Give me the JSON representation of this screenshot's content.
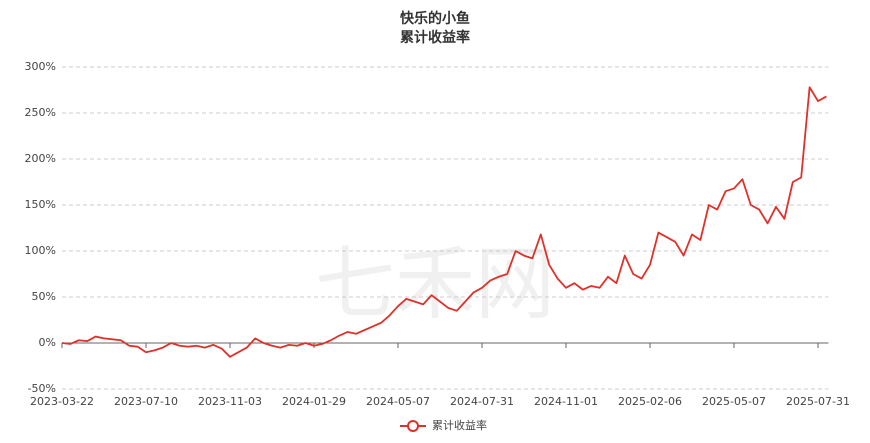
{
  "chart_data": {
    "type": "line",
    "title": "快乐的小鱼",
    "subtitle": "累计收益率",
    "watermark": "七禾网",
    "categories": [
      "2023-03-22",
      null,
      null,
      null,
      null,
      null,
      null,
      null,
      null,
      null,
      "2023-07-10",
      null,
      null,
      null,
      null,
      null,
      null,
      null,
      null,
      null,
      "2023-11-03",
      null,
      null,
      null,
      null,
      null,
      null,
      null,
      null,
      null,
      "2024-01-29",
      null,
      null,
      null,
      null,
      null,
      null,
      null,
      null,
      null,
      "2024-05-07",
      null,
      null,
      null,
      null,
      null,
      null,
      null,
      null,
      null,
      "2024-07-31",
      null,
      null,
      null,
      null,
      null,
      null,
      null,
      null,
      null,
      "2024-11-01",
      null,
      null,
      null,
      null,
      null,
      null,
      null,
      null,
      null,
      "2025-02-06",
      null,
      null,
      null,
      null,
      null,
      null,
      null,
      null,
      null,
      "2025-05-07",
      null,
      null,
      null,
      null,
      null,
      null,
      null,
      null,
      null,
      "2025-07-31",
      null
    ],
    "series": [
      {
        "name": "累计收益率",
        "color": "#e0302a",
        "values": [
          0,
          -1,
          3,
          2,
          7,
          5,
          4,
          3,
          -3,
          -4,
          -10,
          -8,
          -5,
          0,
          -3,
          -4,
          -3,
          -5,
          -2,
          -6,
          -15,
          -10,
          -5,
          5,
          0,
          -3,
          -5,
          -2,
          -3,
          0,
          -3,
          -1,
          3,
          8,
          12,
          10,
          14,
          18,
          22,
          30,
          40,
          48,
          45,
          42,
          52,
          45,
          38,
          35,
          45,
          55,
          60,
          68,
          72,
          75,
          100,
          95,
          92,
          118,
          85,
          70,
          60,
          65,
          58,
          62,
          60,
          72,
          65,
          95,
          75,
          70,
          85,
          120,
          115,
          110,
          95,
          118,
          112,
          150,
          145,
          165,
          168,
          178,
          150,
          145,
          130,
          148,
          135,
          175,
          180,
          278,
          263,
          268
        ]
      }
    ],
    "ylim": [
      -50,
      300
    ],
    "yticks": [
      {
        "value": -50,
        "label": "-50%"
      },
      {
        "value": 0,
        "label": "0%"
      },
      {
        "value": 50,
        "label": "50%"
      },
      {
        "value": 100,
        "label": "100%"
      },
      {
        "value": 150,
        "label": "150%"
      },
      {
        "value": 200,
        "label": "200%"
      },
      {
        "value": 250,
        "label": "250%"
      },
      {
        "value": 300,
        "label": "300%"
      }
    ],
    "grid": true,
    "legend": "bottom"
  }
}
